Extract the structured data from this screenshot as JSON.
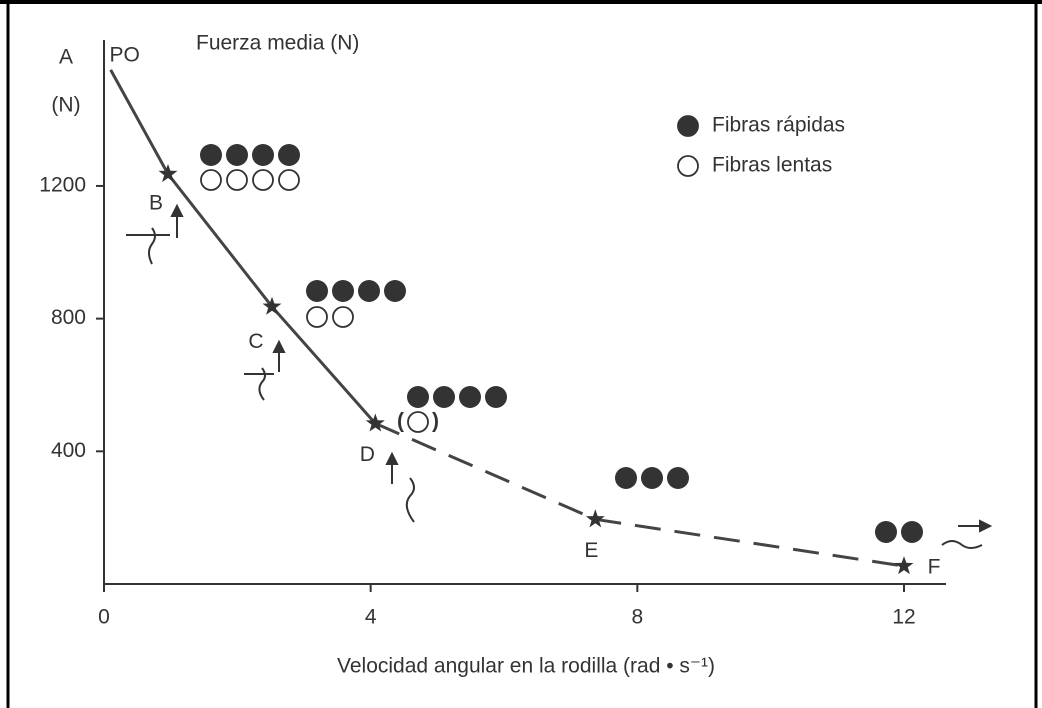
{
  "chart_data": {
    "type": "line",
    "panel_label": "A",
    "y_unit_label": "(N)",
    "title": "Fuerza media (N)",
    "xlabel": "Velocidad angular en la rodilla (rad • s⁻¹)",
    "xlim": [
      0,
      12.63
    ],
    "xticks": [
      0,
      4,
      8,
      12
    ],
    "ylim": [
      0,
      1640
    ],
    "yticks": [
      400,
      800,
      1200
    ],
    "color": "#444444",
    "points": {
      "labels": [
        "PO",
        "B",
        "C",
        "D",
        "E",
        "F"
      ],
      "x": [
        0.1,
        0.96,
        2.52,
        4.07,
        7.37,
        12.0
      ],
      "y": [
        1550,
        1236,
        836,
        484,
        195,
        54
      ]
    },
    "series": [
      {
        "style": "solid",
        "x": [
          0.1,
          0.96,
          2.52,
          4.07
        ],
        "values": [
          1550,
          1236,
          836,
          484
        ]
      },
      {
        "style": "dashed",
        "x": [
          4.07,
          7.37,
          12.0
        ],
        "values": [
          484,
          195,
          54
        ]
      }
    ],
    "legend": [
      {
        "name": "Fibras rápidas",
        "fill": "filled"
      },
      {
        "name": "Fibras lentas",
        "fill": "open"
      }
    ],
    "fiber_groups": [
      {
        "point": "B",
        "fast": 4,
        "slow": 4
      },
      {
        "point": "C",
        "fast": 4,
        "slow": 2
      },
      {
        "point": "D",
        "fast": 4,
        "slow": 1,
        "slow_brackets": [
          "(",
          ")"
        ]
      },
      {
        "point": "E",
        "fast": 3,
        "slow": 0
      },
      {
        "point": "F",
        "fast": 2,
        "slow": 0
      }
    ]
  }
}
